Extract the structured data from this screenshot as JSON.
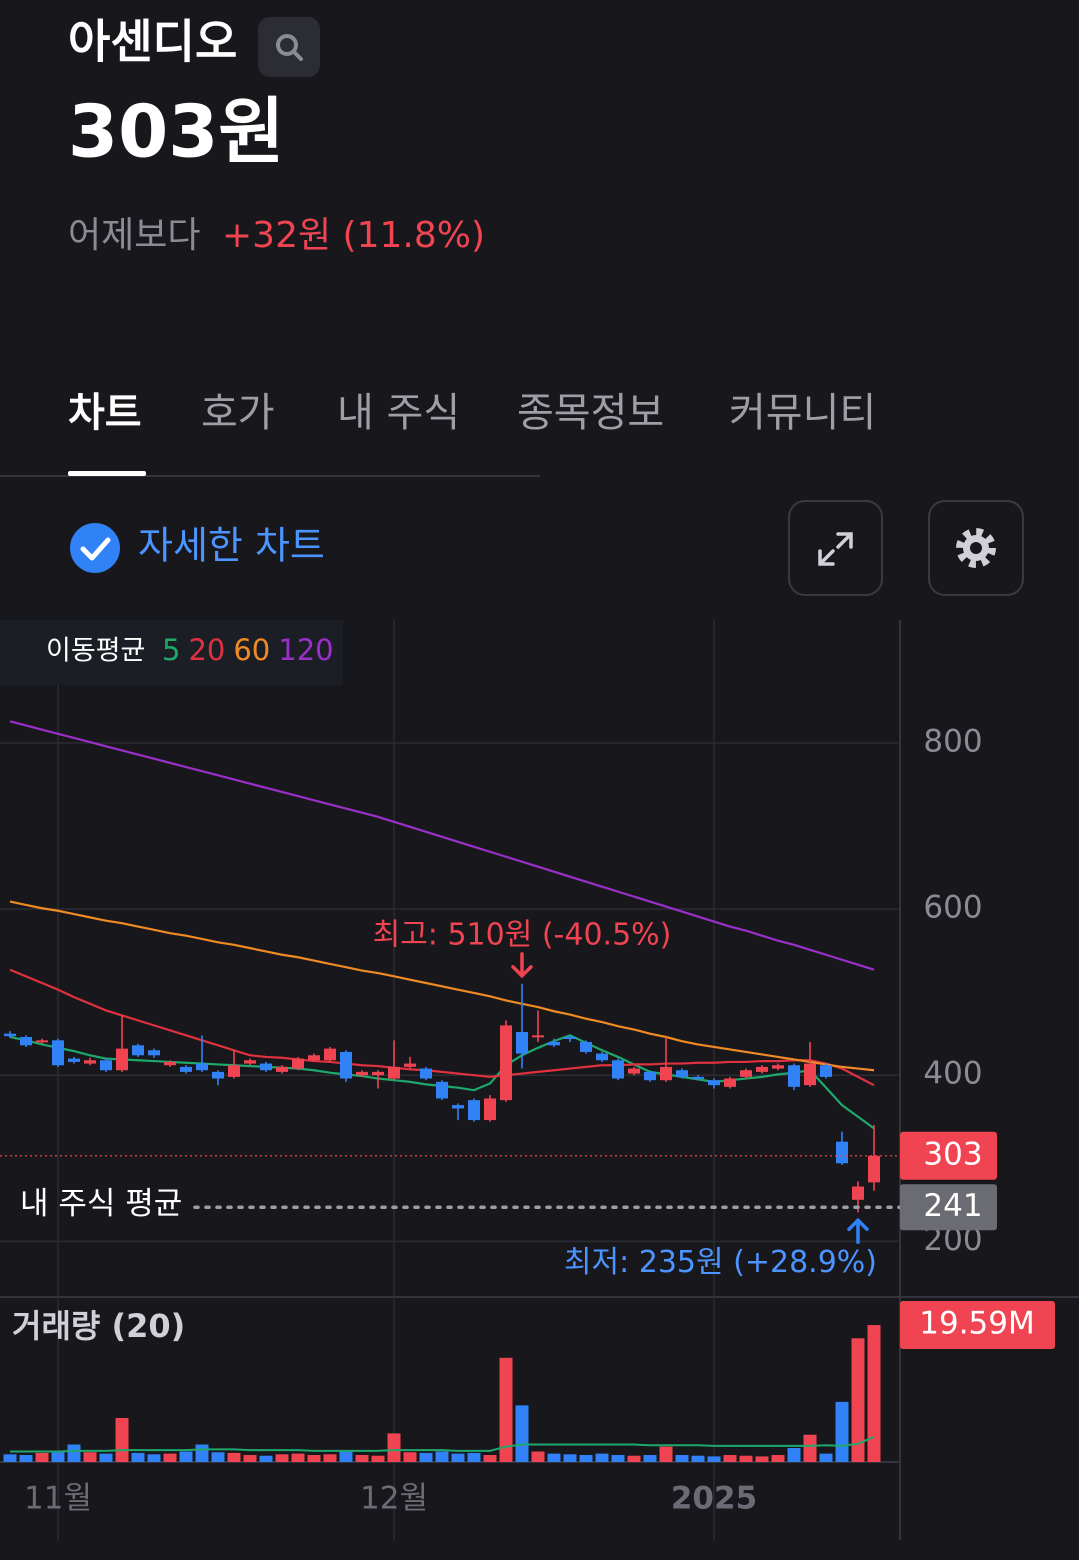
{
  "header": {
    "name": "아센디오",
    "price": "303원",
    "change_prefix": "어제보다",
    "change": "+32원 (11.8%)"
  },
  "tabs": [
    "차트",
    "호가",
    "내 주식",
    "종목정보",
    "커뮤니티"
  ],
  "detail_toggle": "자세한 차트",
  "chart_data": {
    "type": "candlestick",
    "ma_title": "이동평균",
    "categories": [
      null,
      null,
      null,
      "11월",
      null,
      null,
      null,
      null,
      null,
      null,
      null,
      null,
      null,
      null,
      null,
      null,
      null,
      null,
      null,
      null,
      null,
      null,
      null,
      null,
      "12월",
      null,
      null,
      null,
      null,
      null,
      null,
      null,
      null,
      null,
      null,
      null,
      null,
      null,
      null,
      null,
      null,
      null,
      null,
      null,
      "2025",
      null,
      null,
      null,
      null,
      null,
      null,
      null,
      null,
      null,
      null
    ],
    "open": [
      450,
      446,
      440,
      442,
      420,
      414,
      418,
      406,
      436,
      430,
      412,
      410,
      414,
      404,
      398,
      414,
      414,
      404,
      408,
      418,
      418,
      428,
      400,
      400,
      396,
      410,
      408,
      392,
      364,
      370,
      346,
      370,
      452,
      448,
      440,
      446,
      440,
      426,
      418,
      402,
      404,
      394,
      406,
      398,
      394,
      386,
      398,
      404,
      408,
      412,
      388,
      412,
      320,
      250,
      271
    ],
    "high": [
      453,
      448,
      444,
      444,
      422,
      421,
      420,
      472,
      438,
      432,
      418,
      412,
      448,
      406,
      430,
      420,
      416,
      412,
      422,
      426,
      434,
      430,
      406,
      406,
      442,
      422,
      410,
      394,
      366,
      372,
      376,
      466,
      510,
      478,
      444,
      448,
      442,
      428,
      420,
      410,
      406,
      446,
      408,
      400,
      396,
      398,
      408,
      412,
      414,
      414,
      440,
      414,
      332,
      272,
      340
    ],
    "low": [
      445,
      434,
      438,
      410,
      414,
      412,
      404,
      404,
      422,
      421,
      410,
      402,
      404,
      388,
      396,
      412,
      404,
      402,
      406,
      416,
      416,
      392,
      398,
      384,
      394,
      408,
      394,
      370,
      346,
      344,
      344,
      368,
      408,
      440,
      434,
      440,
      426,
      416,
      394,
      400,
      392,
      392,
      396,
      394,
      384,
      384,
      396,
      402,
      406,
      382,
      386,
      396,
      292,
      235,
      261
    ],
    "close": [
      447,
      436,
      442,
      412,
      416,
      418,
      406,
      432,
      424,
      424,
      416,
      404,
      406,
      396,
      412,
      418,
      406,
      410,
      420,
      424,
      432,
      396,
      404,
      404,
      410,
      414,
      396,
      372,
      360,
      346,
      372,
      460,
      426,
      448,
      436,
      444,
      428,
      418,
      396,
      408,
      394,
      410,
      398,
      396,
      388,
      396,
      406,
      410,
      412,
      386,
      414,
      398,
      294,
      266,
      303
    ],
    "up_color": "#f04452",
    "down_color": "#3182f6",
    "series": [
      {
        "name": "5",
        "color": "#1fa86b",
        "values": [
          446,
          442,
          437,
          433,
          429,
          424,
          420,
          419,
          418,
          417,
          416,
          415,
          414,
          413,
          412,
          411,
          410,
          409,
          408,
          406,
          403,
          401,
          399,
          396,
          394,
          392,
          389,
          387,
          385,
          382,
          390,
          412,
          424,
          433,
          441,
          448,
          439,
          430,
          422,
          413,
          404,
          401,
          398,
          395,
          392,
          394,
          396,
          398,
          401,
          403,
          406,
          385,
          364,
          350,
          336
        ]
      },
      {
        "name": "20",
        "color": "#e0313f",
        "values": [
          527,
          519,
          511,
          503,
          494,
          486,
          478,
          472,
          466,
          460,
          454,
          448,
          442,
          436,
          430,
          424,
          422,
          421,
          419,
          417,
          416,
          414,
          412,
          411,
          409,
          407,
          406,
          404,
          402,
          400,
          398,
          400,
          402,
          404,
          406,
          408,
          410,
          412,
          412,
          413,
          413,
          414,
          414,
          415,
          415,
          416,
          416,
          417,
          417,
          418,
          418,
          414,
          408,
          398,
          388
        ]
      },
      {
        "name": "60",
        "color": "#f08a24",
        "values": [
          609,
          605,
          601,
          598,
          594,
          590,
          586,
          583,
          579,
          575,
          571,
          568,
          564,
          560,
          557,
          553,
          549,
          545,
          542,
          538,
          534,
          530,
          526,
          523,
          519,
          515,
          511,
          507,
          503,
          499,
          495,
          490,
          486,
          482,
          477,
          473,
          468,
          464,
          459,
          455,
          450,
          446,
          441,
          437,
          434,
          431,
          428,
          425,
          422,
          419,
          416,
          413,
          410,
          408,
          406
        ]
      },
      {
        "name": "120",
        "color": "#9b30c8",
        "values": [
          826,
          821,
          816,
          811,
          806,
          801,
          796,
          791,
          786,
          781,
          776,
          771,
          766,
          761,
          756,
          751,
          746,
          741,
          736,
          731,
          726,
          721,
          716,
          711,
          705,
          699,
          693,
          687,
          681,
          675,
          669,
          663,
          657,
          651,
          645,
          639,
          633,
          627,
          621,
          615,
          609,
          603,
          597,
          591,
          585,
          579,
          574,
          568,
          562,
          557,
          551,
          545,
          539,
          533,
          527
        ]
      }
    ],
    "ylim": [
      133,
      948
    ],
    "yticks": [
      200,
      400,
      600,
      800
    ],
    "grid": true,
    "current_price": 303,
    "avg_price": 241,
    "avg_label": "내 주식 평균",
    "high_annotation": "최고: 510원 (-40.5%)",
    "low_annotation": "최저: 235원 (+28.9%)",
    "volume_title": "거래량 (20)",
    "volume": [
      1.1,
      1.0,
      1.3,
      1.5,
      2.5,
      1.4,
      1.2,
      6.3,
      1.3,
      1.1,
      1.2,
      1.5,
      2.5,
      1.4,
      1.3,
      1.0,
      0.9,
      1.1,
      1.2,
      1.0,
      1.1,
      1.7,
      1.0,
      0.9,
      4.1,
      1.4,
      1.3,
      1.5,
      1.2,
      1.3,
      1.0,
      14.9,
      8.1,
      1.5,
      1.2,
      1.1,
      1.0,
      1.2,
      1.0,
      0.9,
      1.0,
      2.2,
      1.0,
      0.9,
      0.8,
      1.0,
      0.9,
      0.8,
      1.0,
      2.0,
      3.9,
      1.2,
      8.6,
      17.7,
      19.59
    ],
    "volume_label": "19.59M",
    "volume_ma": {
      "color": "#1fa86b",
      "values": [
        1.5,
        1.5,
        1.5,
        1.5,
        1.6,
        1.6,
        1.6,
        1.7,
        1.7,
        1.7,
        1.7,
        1.7,
        1.8,
        1.8,
        1.8,
        1.7,
        1.7,
        1.7,
        1.7,
        1.6,
        1.6,
        1.6,
        1.6,
        1.6,
        1.7,
        1.7,
        1.7,
        1.7,
        1.6,
        1.6,
        1.6,
        2.2,
        2.5,
        2.5,
        2.5,
        2.5,
        2.5,
        2.5,
        2.5,
        2.5,
        2.4,
        2.4,
        2.4,
        2.4,
        2.3,
        2.3,
        2.3,
        2.3,
        2.3,
        2.3,
        2.3,
        2.4,
        2.3,
        2.6,
        3.6
      ]
    },
    "volume_ylim": [
      0,
      23.6
    ]
  }
}
